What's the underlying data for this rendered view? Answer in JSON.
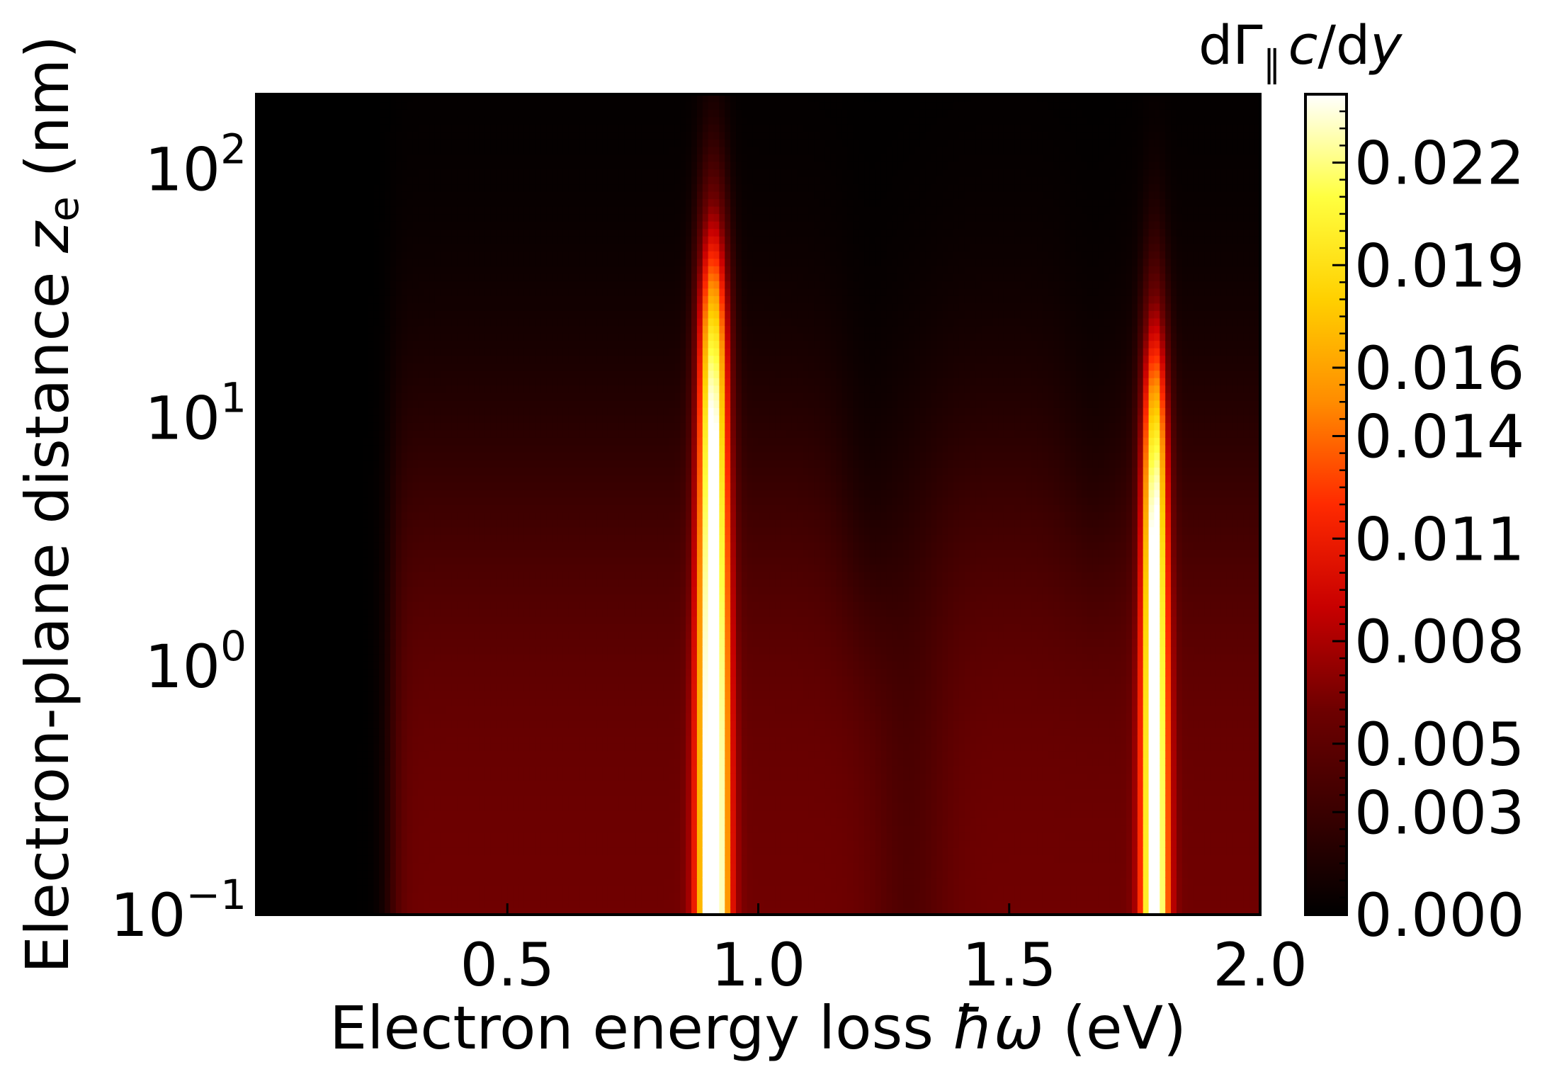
{
  "chart_data": {
    "type": "heatmap",
    "title": "",
    "xlabel": "Electron energy loss ħω (eV)",
    "ylabel": "Electron-plane distance z_e (nm)",
    "xlabel_parts": {
      "pre": "Electron energy loss ",
      "sym": "ħω",
      "post": " (eV)"
    },
    "ylabel_parts": {
      "pre": "Electron-plane distance ",
      "sym": "z",
      "sub": "e",
      "post": " (nm)"
    },
    "xlim": [
      0.0,
      2.0
    ],
    "ylim": [
      0.1,
      200
    ],
    "yscale": "log",
    "x_ticks": [
      {
        "value": 0.5,
        "label": "0.5"
      },
      {
        "value": 1.0,
        "label": "1.0"
      },
      {
        "value": 1.5,
        "label": "1.5"
      },
      {
        "value": 2.0,
        "label": "2.0"
      }
    ],
    "y_ticks": [
      {
        "value": 0.1,
        "base": "10",
        "exp": "−1"
      },
      {
        "value": 1,
        "base": "10",
        "exp": "0"
      },
      {
        "value": 10,
        "base": "10",
        "exp": "1"
      },
      {
        "value": 100,
        "base": "10",
        "exp": "2"
      }
    ],
    "colormap": "hot",
    "colormap_stops": [
      "#000000",
      "#3a0000",
      "#6e0000",
      "#c80000",
      "#ff2a00",
      "#ff8c00",
      "#ffd000",
      "#ffff40",
      "#ffffff"
    ],
    "colorbar": {
      "label_parts": {
        "d": "dΓ",
        "sub": "∥",
        "c": "c",
        "rest": "/d",
        "y": "y"
      },
      "range": [
        0.0,
        0.024
      ],
      "ticks": [
        {
          "value": 0.0,
          "label": "0.000"
        },
        {
          "value": 0.003,
          "label": "0.003"
        },
        {
          "value": 0.005,
          "label": "0.005"
        },
        {
          "value": 0.008,
          "label": "0.008"
        },
        {
          "value": 0.011,
          "label": "0.011"
        },
        {
          "value": 0.014,
          "label": "0.014"
        },
        {
          "value": 0.016,
          "label": "0.016"
        },
        {
          "value": 0.019,
          "label": "0.019"
        },
        {
          "value": 0.022,
          "label": "0.022"
        }
      ]
    },
    "features": [
      {
        "type": "resonance",
        "x": 0.91,
        "peak_value": 0.024,
        "width_eV": 0.03,
        "top_z_nm": 150
      },
      {
        "type": "resonance",
        "x": 1.79,
        "peak_value": 0.023,
        "width_eV": 0.025,
        "top_z_nm": 60
      },
      {
        "type": "dip",
        "x": 1.22
      },
      {
        "type": "dip",
        "x": 1.67
      }
    ]
  }
}
